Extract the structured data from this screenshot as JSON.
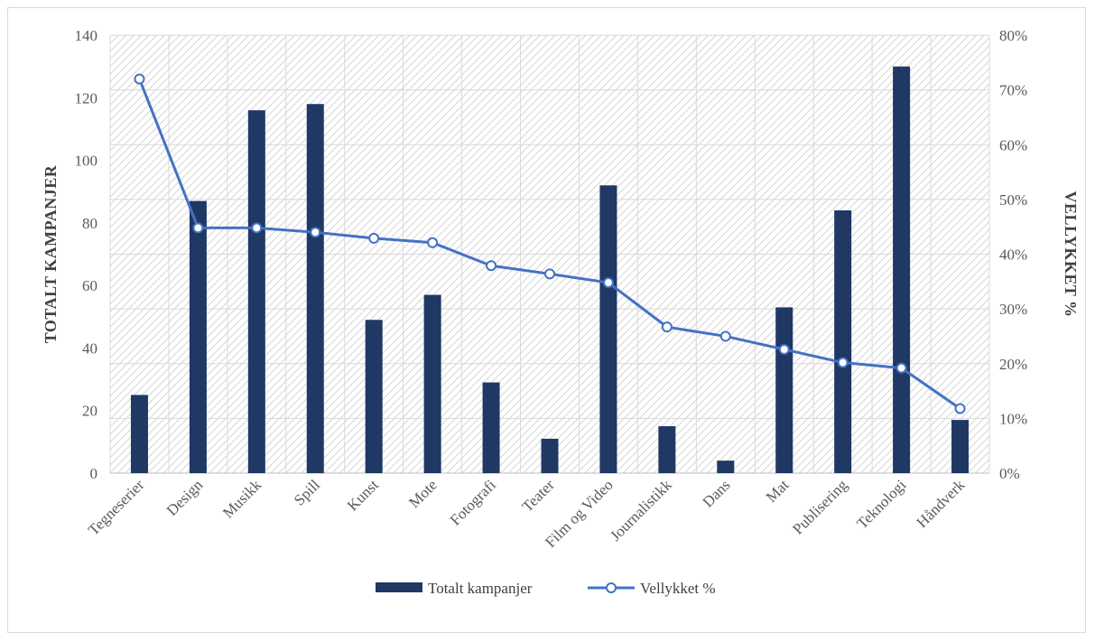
{
  "chart_data": {
    "type": "bar",
    "title": "",
    "categories": [
      "Tegneserier",
      "Design",
      "Musikk",
      "Spill",
      "Kunst",
      "Mote",
      "Fotografi",
      "Teater",
      "Film og Video",
      "Journalistikk",
      "Dans",
      "Mat",
      "Publisering",
      "Teknologi",
      "Håndverk"
    ],
    "series": [
      {
        "name": "Totalt kampanjer",
        "type": "bar",
        "axis": "left",
        "color": "#1f3864",
        "values": [
          25,
          87,
          116,
          118,
          49,
          57,
          29,
          11,
          92,
          15,
          4,
          53,
          84,
          130,
          17
        ]
      },
      {
        "name": "Vellykket %",
        "type": "line",
        "axis": "right",
        "color": "#4472c4",
        "values": [
          0.72,
          0.448,
          0.448,
          0.44,
          0.429,
          0.421,
          0.379,
          0.364,
          0.348,
          0.267,
          0.25,
          0.226,
          0.202,
          0.192,
          0.118
        ]
      }
    ],
    "ylabel": "TOTALT KAMPANJER",
    "ylabel_right": "VELLYKKET %",
    "xlabel": "",
    "ylim": [
      0,
      140
    ],
    "yticks": [
      "0",
      "20",
      "40",
      "60",
      "80",
      "100",
      "120",
      "140"
    ],
    "ylim_right": [
      0,
      0.8
    ],
    "yticks_right": [
      "0%",
      "10%",
      "20%",
      "30%",
      "40%",
      "50%",
      "60%",
      "70%",
      "80%"
    ],
    "grid": true,
    "plot_background": "diagonal-hatch",
    "legend_position": "bottom"
  }
}
